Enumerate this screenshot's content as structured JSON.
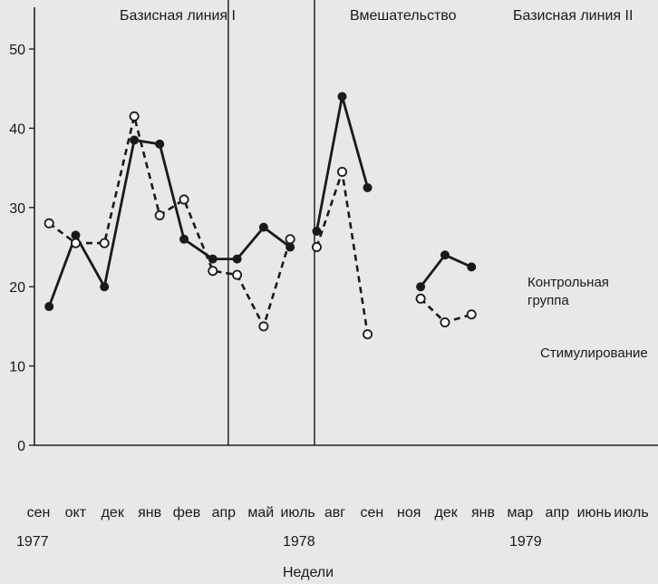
{
  "chart_data": {
    "type": "line",
    "xlabel": "Недели",
    "ylabel": "",
    "ylim": [
      0,
      52
    ],
    "yticks": [
      0,
      10,
      20,
      30,
      40,
      50
    ],
    "grid": false,
    "legend": "inline",
    "categories": [
      "сен",
      "окт",
      "дек",
      "янв",
      "фев",
      "апр",
      "май",
      "июль",
      "авг",
      "сен",
      "ноя",
      "дек",
      "янв",
      "мар",
      "апр",
      "июнь",
      "июль"
    ],
    "years": [
      {
        "label": "1977",
        "at_category": 0
      },
      {
        "label": "1978",
        "at_category": 7
      },
      {
        "label": "1979",
        "at_category": 13
      }
    ],
    "phases": [
      {
        "label": "Базисная линия I",
        "from": 0,
        "to": 8
      },
      {
        "label": "Вмешательство",
        "from": 9,
        "to": 12
      },
      {
        "label": "Базисная линия II",
        "from": 13,
        "to": 16
      }
    ],
    "phase_dividers": [
      8.6,
      12.5
    ],
    "series": [
      {
        "name": "Контрольная группа",
        "style": "solid",
        "marker": "filled",
        "segments": [
          [
            [
              0.5,
              17.5
            ],
            [
              1.7,
              26.5
            ],
            [
              3,
              20
            ],
            [
              4.35,
              38.5
            ],
            [
              5.5,
              38
            ],
            [
              6.6,
              26
            ],
            [
              7.9,
              23.5
            ],
            [
              9,
              23.5
            ],
            [
              10.2,
              27.5
            ],
            [
              11.4,
              25
            ]
          ],
          [
            [
              12.6,
              27
            ],
            [
              13.75,
              44
            ],
            [
              14.9,
              32.5
            ]
          ],
          [
            [
              17.3,
              20
            ],
            [
              18.4,
              24
            ],
            [
              19.6,
              22.5
            ]
          ]
        ]
      },
      {
        "name": "Стимулирование",
        "style": "dashed",
        "marker": "open",
        "segments": [
          [
            [
              0.5,
              28
            ],
            [
              1.7,
              25.5
            ],
            [
              3,
              25.5
            ],
            [
              4.35,
              41.5
            ],
            [
              5.5,
              29
            ],
            [
              6.6,
              31
            ],
            [
              7.9,
              22
            ],
            [
              9,
              21.5
            ],
            [
              10.2,
              15
            ],
            [
              11.4,
              26
            ]
          ],
          [
            [
              12.6,
              25
            ],
            [
              13.75,
              34.5
            ],
            [
              14.9,
              14
            ]
          ],
          [
            [
              17.3,
              18.5
            ],
            [
              18.4,
              15.5
            ],
            [
              19.6,
              16.5
            ]
          ]
        ]
      }
    ],
    "annotations": [
      {
        "text": "Контрольная",
        "near_series": "Контрольная группа"
      },
      {
        "text": "группа",
        "near_series": "Контрольная группа"
      },
      {
        "text": "Стимулирование",
        "near_series": "Стимулирование"
      }
    ]
  }
}
